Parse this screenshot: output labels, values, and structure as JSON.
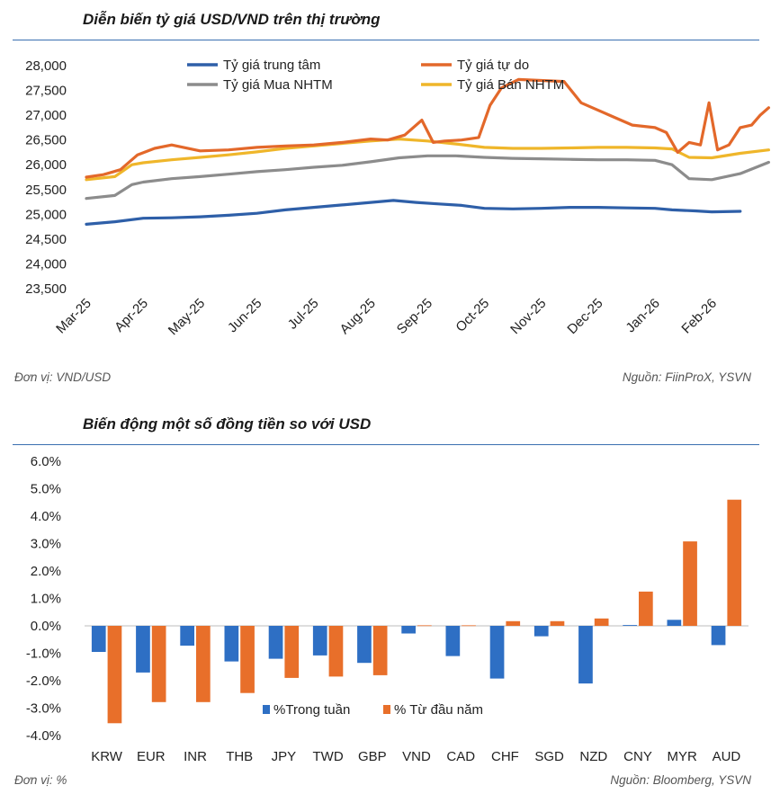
{
  "chart_data": [
    {
      "type": "line",
      "title": "Diễn biến tỷ giá USD/VND trên thị trường",
      "unit_note": "Đơn vị: VND/USD",
      "source_note": "Nguồn: FiinProX, YSVN",
      "ylim": [
        23500,
        28000
      ],
      "yticks": [
        "23,500",
        "24,000",
        "24,500",
        "25,000",
        "25,500",
        "26,000",
        "26,500",
        "27,000",
        "27,500",
        "28,000"
      ],
      "xticks": [
        "Mar-25",
        "Apr-25",
        "May-25",
        "Jun-25",
        "Jul-25",
        "Aug-25",
        "Sep-25",
        "Oct-25",
        "Nov-25",
        "Dec-25",
        "Jan-26",
        "Feb-26"
      ],
      "grid": false,
      "legend": "top",
      "colors": {
        "trung_tam": "#2e5fa8",
        "tu_do": "#e3682a",
        "mua": "#8c8c8c",
        "ban": "#efb62a"
      },
      "series": [
        {
          "name": "Tỷ giá trung tâm",
          "key": "trung_tam",
          "x": [
            0,
            0.5,
            1,
            1.5,
            2,
            2.5,
            3,
            3.5,
            4,
            4.5,
            5,
            5.4,
            5.8,
            6.2,
            6.6,
            7,
            7.5,
            8,
            8.5,
            9,
            9.5,
            10,
            10.3,
            10.7,
            11,
            11.5
          ],
          "values": [
            24800,
            24850,
            24920,
            24930,
            24950,
            24980,
            25020,
            25090,
            25140,
            25190,
            25240,
            25280,
            25240,
            25210,
            25180,
            25120,
            25110,
            25120,
            25140,
            25140,
            25130,
            25120,
            25090,
            25070,
            25050,
            25060
          ]
        },
        {
          "name": "Tỷ giá tự do",
          "key": "tu_do",
          "x": [
            0,
            0.3,
            0.6,
            0.9,
            1.2,
            1.5,
            2,
            2.5,
            3,
            3.5,
            4,
            4.5,
            5,
            5.3,
            5.6,
            5.9,
            6.1,
            6.3,
            6.6,
            6.9,
            7.1,
            7.3,
            7.6,
            8,
            8.4,
            8.7,
            8.9,
            9.2,
            9.6,
            10,
            10.2,
            10.4,
            10.6,
            10.8,
            10.95,
            11.1,
            11.3,
            11.5,
            11.7,
            11.85,
            12
          ],
          "values": [
            25750,
            25800,
            25900,
            26200,
            26330,
            26400,
            26280,
            26300,
            26350,
            26380,
            26400,
            26450,
            26520,
            26500,
            26600,
            26900,
            26450,
            26480,
            26500,
            26550,
            27200,
            27550,
            27720,
            27700,
            27680,
            27250,
            27150,
            27000,
            26800,
            26750,
            26650,
            26250,
            26450,
            26400,
            27250,
            26300,
            26400,
            26750,
            26800,
            27000,
            27150
          ]
        },
        {
          "name": "Tỷ giá Mua NHTM",
          "key": "mua",
          "x": [
            0,
            0.5,
            0.8,
            1,
            1.5,
            2,
            2.5,
            3,
            3.5,
            4,
            4.5,
            5,
            5.5,
            6,
            6.5,
            7,
            7.5,
            8,
            8.5,
            9,
            9.5,
            10,
            10.3,
            10.6,
            11,
            11.5,
            12
          ],
          "values": [
            25320,
            25380,
            25600,
            25650,
            25720,
            25760,
            25810,
            25860,
            25900,
            25950,
            25990,
            26060,
            26140,
            26180,
            26180,
            26150,
            26130,
            26120,
            26110,
            26100,
            26100,
            26090,
            26000,
            25720,
            25700,
            25820,
            26050
          ]
        },
        {
          "name": "Tỷ giá Bán NHTM",
          "key": "ban",
          "x": [
            0,
            0.5,
            0.8,
            1,
            1.5,
            2,
            2.5,
            3,
            3.5,
            4,
            4.5,
            5,
            5.5,
            6,
            6.5,
            7,
            7.5,
            8,
            8.5,
            9,
            9.5,
            10,
            10.3,
            10.6,
            11,
            11.5,
            12
          ],
          "values": [
            25700,
            25760,
            26000,
            26040,
            26100,
            26150,
            26200,
            26260,
            26330,
            26380,
            26430,
            26480,
            26520,
            26480,
            26420,
            26350,
            26330,
            26330,
            26340,
            26350,
            26350,
            26340,
            26320,
            26150,
            26140,
            26230,
            26300
          ]
        }
      ]
    },
    {
      "type": "bar",
      "title": "Biến động một số đồng tiền so với USD",
      "unit_note": "Đơn vị: %",
      "source_note": "Nguồn: Bloomberg, YSVN",
      "ylim": [
        -4.0,
        6.0
      ],
      "yticks": [
        "-4.0%",
        "-3.0%",
        "-2.0%",
        "-1.0%",
        "0.0%",
        "1.0%",
        "2.0%",
        "3.0%",
        "4.0%",
        "5.0%",
        "6.0%"
      ],
      "categories": [
        "KRW",
        "EUR",
        "INR",
        "THB",
        "JPY",
        "TWD",
        "GBP",
        "VND",
        "CAD",
        "CHF",
        "SGD",
        "NZD",
        "CNY",
        "MYR",
        "AUD"
      ],
      "legend": "bottom-center",
      "colors": {
        "week": "#2e6fc4",
        "ytd": "#e86f2a"
      },
      "series": [
        {
          "name": "%Trong tuần",
          "key": "week",
          "values": [
            -0.95,
            -1.7,
            -0.72,
            -1.3,
            -1.2,
            -1.08,
            -1.35,
            -0.28,
            -1.1,
            -1.92,
            -0.38,
            -2.1,
            0.03,
            0.22,
            -0.7
          ]
        },
        {
          "name": "% Từ đầu năm",
          "key": "ytd",
          "values": [
            -3.55,
            -2.78,
            -2.78,
            -2.45,
            -1.9,
            -1.85,
            -1.8,
            0.02,
            0.02,
            0.17,
            0.17,
            0.27,
            1.25,
            3.08,
            4.6
          ]
        }
      ]
    }
  ]
}
